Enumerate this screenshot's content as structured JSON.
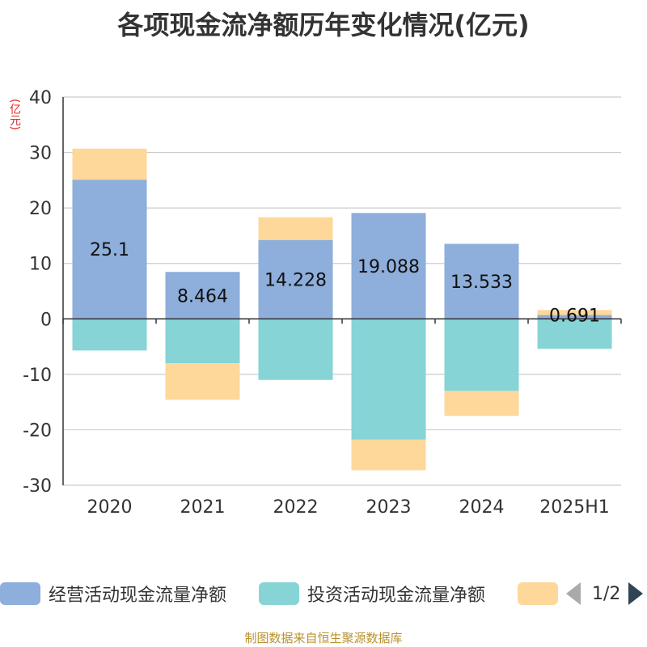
{
  "source_note": "制图数据来自恒生聚源数据库",
  "pager": {
    "text": "1/2"
  },
  "colors": {
    "operating": "#8eaedb",
    "investing": "#86d4d6",
    "financing": "#fdd89a",
    "axis": "#333333",
    "grid": "#cccccc"
  },
  "chart_data": {
    "type": "bar",
    "stacked": true,
    "title": "各项现金流净额历年变化情况(亿元)",
    "ylabel": "(亿元)",
    "ylim": [
      -30,
      40
    ],
    "yticks": [
      40,
      30,
      20,
      10,
      0,
      -10,
      -20,
      -30
    ],
    "grid": true,
    "legend_position": "bottom",
    "categories": [
      "2020",
      "2021",
      "2022",
      "2023",
      "2024",
      "2025H1"
    ],
    "series": [
      {
        "name": "经营活动现金流量净额",
        "values": [
          25.1,
          8.464,
          14.228,
          19.088,
          13.533,
          0.691
        ]
      },
      {
        "name": "投资活动现金流量净额",
        "values": [
          -5.7,
          -8.0,
          -11.0,
          -21.8,
          -13.0,
          -5.4
        ]
      },
      {
        "name": "",
        "values": [
          5.6,
          -6.6,
          4.1,
          -5.5,
          -4.5,
          0.9
        ]
      }
    ],
    "data_labels": [
      "25.1",
      "8.464",
      "14.228",
      "19.088",
      "13.533",
      "0.691"
    ]
  }
}
